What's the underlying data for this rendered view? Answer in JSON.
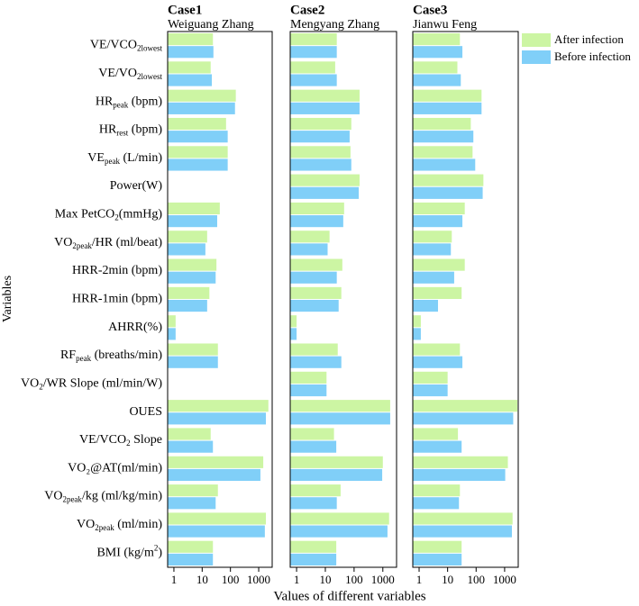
{
  "chart_data": {
    "type": "bar",
    "orientation": "horizontal",
    "xscale": "log",
    "xlabel": "Values of different variables",
    "ylabel": "Variables",
    "xlim": [
      0.6,
      3000
    ],
    "xticks": [
      1,
      10,
      100,
      1000
    ],
    "legend_position": "upper right",
    "categories": [
      [
        "VE/VCO",
        {
          "sub": "2lowest"
        }
      ],
      [
        "VE/VO",
        {
          "sub": "2lowest"
        }
      ],
      [
        "HR",
        {
          "sub": "peak"
        },
        " (bpm)"
      ],
      [
        "HR",
        {
          "sub": "rest"
        },
        " (bpm)"
      ],
      [
        "VE",
        {
          "sub": "peak"
        },
        " (L/min)"
      ],
      [
        "Power(W)"
      ],
      [
        "Max PetCO",
        {
          "sub": "2"
        },
        "(mmHg)"
      ],
      [
        "VO",
        {
          "sub": "2peak"
        },
        "/HR (ml/beat)"
      ],
      [
        "HRR-2min (bpm)"
      ],
      [
        "HRR-1min (bpm)"
      ],
      [
        "AHRR(%)"
      ],
      [
        "RF",
        {
          "sub": "peak"
        },
        " (breaths/min)"
      ],
      [
        "VO",
        {
          "sub": "2"
        },
        "/WR Slope (ml/min/W)"
      ],
      [
        "OUES"
      ],
      [
        "VE/VCO",
        {
          "sub": "2"
        },
        "  Slope"
      ],
      [
        "VO₂@AT(ml/min)"
      ],
      [
        "VO",
        {
          "sub": "2peak"
        },
        "/kg (ml/kg/min)"
      ],
      [
        "VO",
        {
          "sub": "2peak"
        },
        "  (ml/min)"
      ],
      [
        "BMI (kg/m",
        {
          "sup": "2"
        },
        ")"
      ]
    ],
    "panels": [
      {
        "title": "Case1",
        "subtitle": "Weiguang Zhang"
      },
      {
        "title": "Case2",
        "subtitle": "Mengyang Zhang"
      },
      {
        "title": "Case3",
        "subtitle": "Jianwu Feng"
      }
    ],
    "series": [
      {
        "name": "After infection",
        "color": "#ccf5a3",
        "values": [
          [
            24,
            20,
            155,
            70,
            80,
            null,
            42,
            15,
            32,
            18,
            1.15,
            36,
            null,
            2200,
            20,
            1450,
            36,
            1800,
            24
          ],
          [
            25,
            22,
            155,
            80,
            75,
            155,
            45,
            14,
            39,
            36,
            1,
            27,
            11,
            1800,
            20,
            1000,
            34,
            1650,
            24
          ],
          [
            27,
            22,
            155,
            65,
            75,
            180,
            40,
            14,
            40,
            31,
            1.15,
            27,
            10,
            2800,
            23,
            1300,
            27,
            1900,
            31
          ]
        ]
      },
      {
        "name": "Before infection",
        "color": "#80cff8",
        "values": [
          [
            25,
            22,
            145,
            80,
            80,
            null,
            34,
            13,
            30,
            15,
            1.15,
            36,
            null,
            1800,
            24,
            1150,
            30,
            1650,
            24
          ],
          [
            25,
            25,
            155,
            70,
            80,
            145,
            42,
            12,
            25,
            29,
            1,
            36,
            11,
            1800,
            24,
            950,
            25,
            1450,
            24
          ],
          [
            33,
            29,
            155,
            80,
            93,
            170,
            33,
            13,
            17,
            4.6,
            1.15,
            33,
            10,
            2000,
            31,
            1050,
            25,
            1800,
            31
          ]
        ]
      }
    ]
  }
}
